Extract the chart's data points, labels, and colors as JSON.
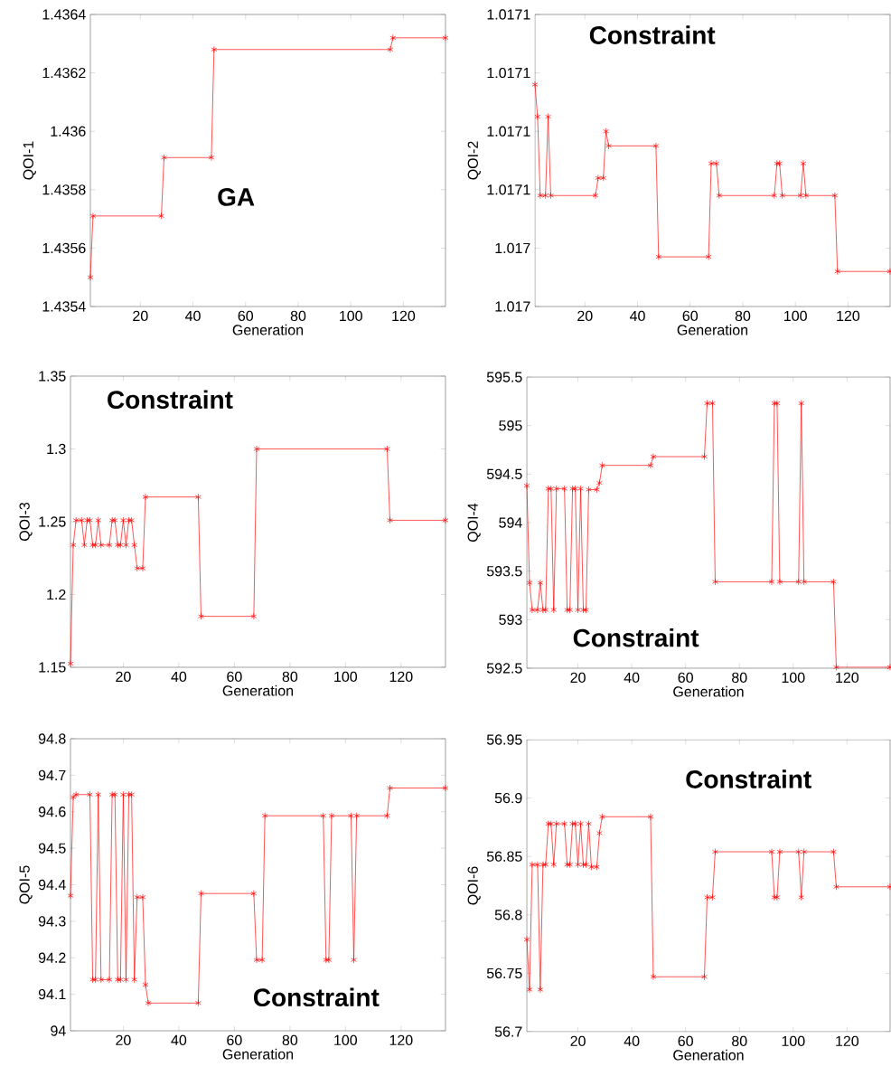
{
  "chart_data": [
    {
      "type": "line",
      "xlabel": "Generation",
      "ylabel": "QOI-1",
      "annotations": [
        "GA"
      ],
      "marker": "cross",
      "line_style": "solid",
      "xlim": [
        1,
        136
      ],
      "xticks": [
        20,
        40,
        60,
        80,
        100,
        120
      ],
      "ylim": [
        1.4354,
        1.4364
      ],
      "yticks": [
        1.4354,
        1.4356,
        1.4358,
        1.436,
        1.4362,
        1.4364
      ],
      "x": [
        1,
        2,
        28,
        29,
        47,
        48,
        115,
        116,
        136
      ],
      "series": [
        {
          "color": "#ff0000",
          "values": [
            1.4355,
            1.43571,
            1.43571,
            1.43591,
            1.43591,
            1.43628,
            1.43628,
            1.43632,
            1.43632
          ]
        }
      ]
    },
    {
      "type": "line",
      "xlabel": "Generation",
      "ylabel": "QOI-2",
      "annotations": [
        "Constraint"
      ],
      "marker": "cross",
      "line_style": "solid",
      "xlim": [
        1,
        136
      ],
      "xticks": [
        20,
        40,
        60,
        80,
        100,
        120
      ],
      "ylim": [
        1.01702,
        1.01712
      ],
      "yticks": [
        {
          "value": 1.01702,
          "label": "1.017"
        },
        {
          "value": 1.01704,
          "label": "1.017"
        },
        {
          "value": 1.01706,
          "label": "1.0171"
        },
        {
          "value": 1.01708,
          "label": "1.0171"
        },
        {
          "value": 1.0171,
          "label": "1.0171"
        },
        {
          "value": 1.01712,
          "label": "1.0171"
        }
      ],
      "x": [
        1,
        2,
        3,
        5,
        6,
        7,
        24,
        25,
        27,
        28,
        29,
        47,
        48,
        67,
        68,
        70,
        71,
        92,
        93,
        94,
        95,
        102,
        103,
        104,
        115,
        116,
        136
      ],
      "series": [
        {
          "color": "#ff0000",
          "values": [
            1.017096,
            1.017085,
            1.017058,
            1.017058,
            1.017085,
            1.017058,
            1.017058,
            1.017064,
            1.017064,
            1.01708,
            1.017075,
            1.017075,
            1.017037,
            1.017037,
            1.017069,
            1.017069,
            1.017058,
            1.017058,
            1.017069,
            1.017069,
            1.017058,
            1.017058,
            1.017069,
            1.017058,
            1.017058,
            1.017032,
            1.017032
          ]
        }
      ]
    },
    {
      "type": "line",
      "xlabel": "Generation",
      "ylabel": "QOI-3",
      "annotations": [
        "Constraint"
      ],
      "marker": "cross",
      "line_style": "solid",
      "xlim": [
        1,
        136
      ],
      "xticks": [
        20,
        40,
        60,
        80,
        100,
        120
      ],
      "ylim": [
        1.15,
        1.35
      ],
      "yticks": [
        1.15,
        1.2,
        1.25,
        1.3,
        1.35
      ],
      "x": [
        1,
        2,
        3,
        5,
        6,
        7,
        8,
        9,
        10,
        11,
        12,
        15,
        16,
        17,
        18,
        19,
        20,
        21,
        22,
        23,
        24,
        25,
        27,
        28,
        47,
        48,
        67,
        68,
        115,
        116,
        136
      ],
      "series": [
        {
          "color": "#ff0000",
          "values": [
            1.1525,
            1.234,
            1.251,
            1.251,
            1.234,
            1.251,
            1.251,
            1.234,
            1.234,
            1.251,
            1.234,
            1.234,
            1.251,
            1.251,
            1.234,
            1.234,
            1.251,
            1.234,
            1.251,
            1.251,
            1.234,
            1.218,
            1.218,
            1.267,
            1.267,
            1.185,
            1.185,
            1.3,
            1.3,
            1.251,
            1.251
          ]
        }
      ]
    },
    {
      "type": "line",
      "xlabel": "Generation",
      "ylabel": "QOI-4",
      "annotations": [
        "Constraint"
      ],
      "marker": "cross",
      "line_style": "solid",
      "xlim": [
        1,
        136
      ],
      "xticks": [
        20,
        40,
        60,
        80,
        100,
        120
      ],
      "ylim": [
        592.5,
        595.5
      ],
      "yticks": [
        592.5,
        593,
        593.5,
        594,
        594.5,
        595,
        595.5
      ],
      "x": [
        1,
        2,
        3,
        5,
        6,
        7,
        8,
        9,
        10,
        11,
        12,
        15,
        16,
        17,
        18,
        19,
        20,
        21,
        22,
        23,
        24,
        27,
        28,
        29,
        47,
        48,
        67,
        68,
        70,
        71,
        92,
        93,
        94,
        95,
        102,
        103,
        104,
        115,
        116,
        136
      ],
      "series": [
        {
          "color": "#ff0000",
          "values": [
            594.38,
            593.38,
            593.1,
            593.1,
            593.38,
            593.1,
            593.1,
            594.35,
            594.35,
            593.1,
            594.35,
            594.35,
            593.1,
            593.1,
            594.35,
            594.35,
            593.1,
            594.35,
            593.1,
            593.1,
            594.34,
            594.34,
            594.41,
            594.59,
            594.59,
            594.68,
            594.68,
            595.23,
            595.23,
            593.39,
            593.39,
            595.23,
            595.23,
            593.39,
            593.39,
            595.23,
            593.39,
            593.39,
            592.51,
            592.51
          ]
        }
      ]
    },
    {
      "type": "line",
      "xlabel": "Generation",
      "ylabel": "QOI-5",
      "annotations": [
        "Constraint"
      ],
      "marker": "cross",
      "line_style": "solid",
      "xlim": [
        1,
        136
      ],
      "xticks": [
        20,
        40,
        60,
        80,
        100,
        120
      ],
      "ylim": [
        94,
        94.8
      ],
      "yticks": [
        94,
        94.1,
        94.2,
        94.3,
        94.4,
        94.5,
        94.6,
        94.7,
        94.8
      ],
      "x": [
        1,
        2,
        3,
        8,
        9,
        10,
        11,
        12,
        15,
        16,
        17,
        18,
        19,
        20,
        21,
        22,
        23,
        24,
        25,
        27,
        28,
        29,
        47,
        48,
        67,
        68,
        70,
        71,
        92,
        93,
        94,
        95,
        102,
        103,
        104,
        115,
        116,
        136
      ],
      "series": [
        {
          "color": "#ff0000",
          "values": [
            94.37,
            94.64,
            94.647,
            94.647,
            94.14,
            94.14,
            94.647,
            94.14,
            94.14,
            94.647,
            94.647,
            94.14,
            94.14,
            94.647,
            94.14,
            94.647,
            94.647,
            94.14,
            94.366,
            94.366,
            94.126,
            94.076,
            94.076,
            94.376,
            94.376,
            94.194,
            94.194,
            94.589,
            94.589,
            94.194,
            94.194,
            94.589,
            94.589,
            94.194,
            94.589,
            94.589,
            94.665,
            94.665
          ]
        }
      ]
    },
    {
      "type": "line",
      "xlabel": "Generation",
      "ylabel": "QOI-6",
      "annotations": [
        "Constraint"
      ],
      "marker": "cross",
      "line_style": "solid",
      "xlim": [
        1,
        136
      ],
      "xticks": [
        20,
        40,
        60,
        80,
        100,
        120
      ],
      "ylim": [
        56.7,
        56.95
      ],
      "yticks": [
        56.7,
        56.75,
        56.8,
        56.85,
        56.9,
        56.95
      ],
      "x": [
        1,
        2,
        3,
        5,
        6,
        7,
        8,
        9,
        10,
        11,
        12,
        15,
        16,
        17,
        18,
        19,
        20,
        21,
        22,
        23,
        24,
        25,
        27,
        28,
        29,
        47,
        48,
        67,
        68,
        70,
        71,
        92,
        93,
        94,
        95,
        102,
        103,
        104,
        115,
        116,
        136
      ],
      "series": [
        {
          "color": "#ff0000",
          "values": [
            56.779,
            56.736,
            56.843,
            56.843,
            56.736,
            56.843,
            56.843,
            56.878,
            56.878,
            56.843,
            56.878,
            56.878,
            56.843,
            56.843,
            56.878,
            56.878,
            56.843,
            56.878,
            56.843,
            56.843,
            56.878,
            56.841,
            56.841,
            56.87,
            56.884,
            56.884,
            56.747,
            56.747,
            56.815,
            56.815,
            56.854,
            56.854,
            56.815,
            56.815,
            56.854,
            56.854,
            56.815,
            56.854,
            56.854,
            56.824,
            56.824
          ]
        }
      ]
    }
  ]
}
